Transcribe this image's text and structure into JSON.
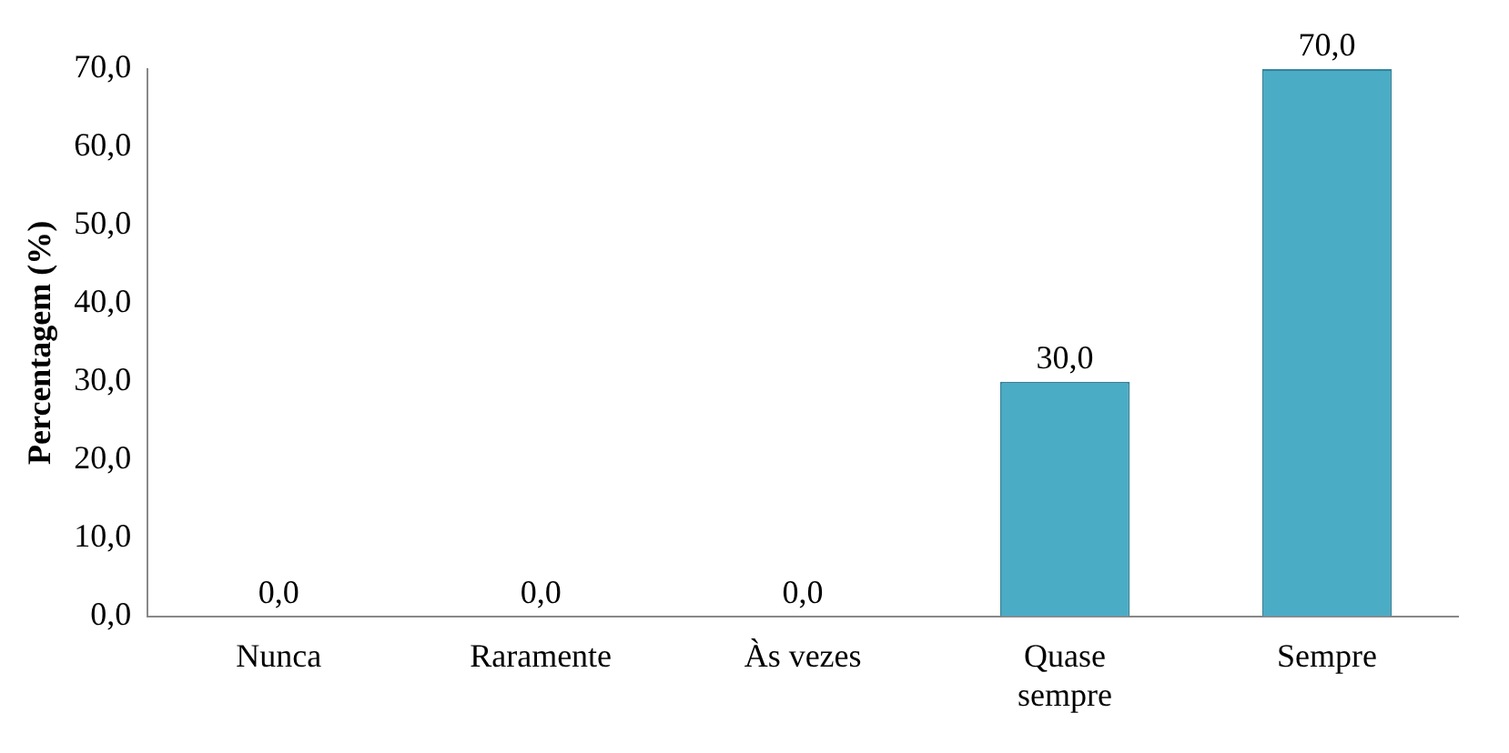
{
  "chart_data": {
    "type": "bar",
    "ylabel": "Percentagem (%)",
    "categories": [
      "Nunca",
      "Raramente",
      "Às vezes",
      "Quase sempre",
      "Sempre"
    ],
    "values": [
      0,
      0,
      0,
      30,
      70
    ],
    "color": "#4bacc6",
    "value_labels": [
      "0,0",
      "0,0",
      "0,0",
      "30,0",
      "70,0"
    ],
    "ylim": [
      0,
      70
    ],
    "yticks": [
      {
        "value": 0,
        "label": "0,0"
      },
      {
        "value": 10,
        "label": "10,0"
      },
      {
        "value": 20,
        "label": "20,0"
      },
      {
        "value": 30,
        "label": "30,0"
      },
      {
        "value": 40,
        "label": "40,0"
      },
      {
        "value": 50,
        "label": "50,0"
      },
      {
        "value": 60,
        "label": "60,0"
      },
      {
        "value": 70,
        "label": "70,0"
      }
    ],
    "grid": false,
    "legend": false
  }
}
